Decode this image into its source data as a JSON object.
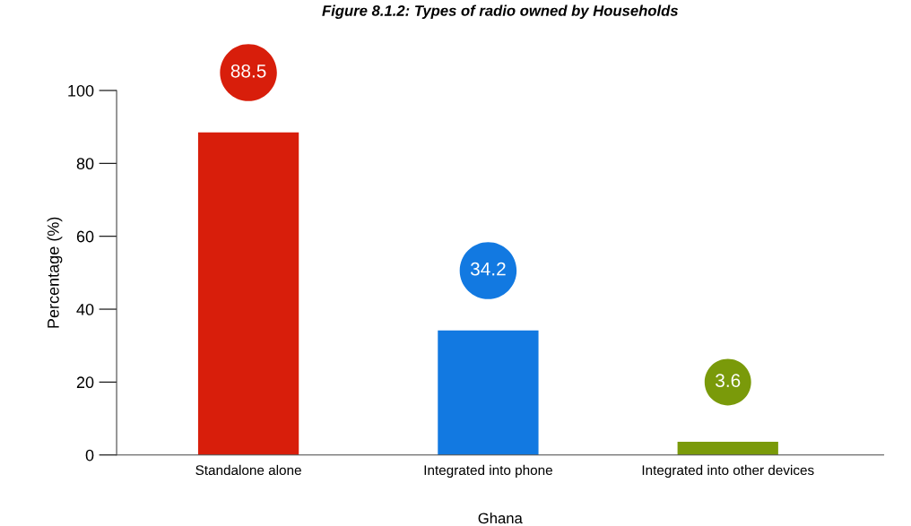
{
  "chart_data": {
    "type": "bar",
    "title": "Figure 8.1.2: Types of radio owned by Households",
    "xlabel": "Ghana",
    "ylabel": "Percentage (%)",
    "categories": [
      "Standalone alone",
      "Integrated into phone",
      "Integrated into other devices"
    ],
    "values": [
      88.5,
      34.2,
      3.6
    ],
    "colors": [
      "#d81e0b",
      "#1279e1",
      "#7a9a0a"
    ],
    "ylim": [
      0,
      100
    ],
    "yticks": [
      0,
      20,
      40,
      60,
      80,
      100
    ],
    "grid": false,
    "legend": false,
    "data_labels": true
  }
}
